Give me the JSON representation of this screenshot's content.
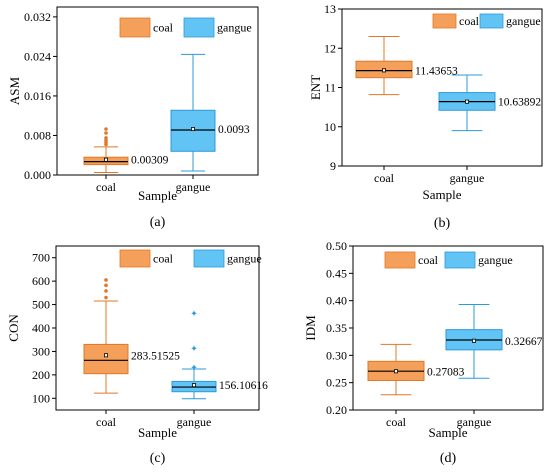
{
  "colors": {
    "coal_fill": "#f4a05a",
    "coal_edge": "#e07828",
    "gangue_fill": "#62c3f5",
    "gangue_edge": "#2c9ad8"
  },
  "legend": {
    "coal": "coal",
    "gangue": "gangue"
  },
  "chart_data": [
    {
      "type": "box",
      "panel_label": "(a)",
      "xlabel": "Sample",
      "ylabel": "ASM",
      "ylim": [
        0,
        0.034
      ],
      "yticks": [
        "0.000",
        "0.008",
        "0.016",
        "0.024",
        "0.032"
      ],
      "categories": [
        "coal",
        "gangue"
      ],
      "series": [
        {
          "name": "coal",
          "whisker_low": 0.0005,
          "q1": 0.0021,
          "median": 0.0027,
          "q3": 0.0036,
          "whisker_high": 0.0057,
          "mean": 0.00309,
          "mean_label": "0.00309",
          "outliers": [
            0.0062,
            0.0066,
            0.007,
            0.0075,
            0.0085,
            0.0093
          ]
        },
        {
          "name": "gangue",
          "whisker_low": 0.0008,
          "q1": 0.0048,
          "median": 0.0091,
          "q3": 0.0131,
          "whisker_high": 0.0244,
          "mean": 0.0093,
          "mean_label": "0.0093",
          "outliers": []
        }
      ]
    },
    {
      "type": "box",
      "panel_label": "(b)",
      "xlabel": "Sample",
      "ylabel": "ENT",
      "ylim": [
        9,
        13
      ],
      "yticks": [
        "9",
        "10",
        "11",
        "12",
        "13"
      ],
      "categories": [
        "coal",
        "gangue"
      ],
      "series": [
        {
          "name": "coal",
          "whisker_low": 10.82,
          "q1": 11.25,
          "median": 11.43,
          "q3": 11.67,
          "whisker_high": 12.3,
          "mean": 11.43653,
          "mean_label": "11.43653",
          "outliers": []
        },
        {
          "name": "gangue",
          "whisker_low": 9.9,
          "q1": 10.42,
          "median": 10.64,
          "q3": 10.87,
          "whisker_high": 11.32,
          "mean": 10.63892,
          "mean_label": "10.63892",
          "outliers": []
        }
      ]
    },
    {
      "type": "box",
      "panel_label": "(c)",
      "xlabel": "Sample",
      "ylabel": "CON",
      "ylim": [
        50,
        750
      ],
      "yticks": [
        "100",
        "200",
        "300",
        "400",
        "500",
        "600",
        "700"
      ],
      "categories": [
        "coal",
        "gangue"
      ],
      "series": [
        {
          "name": "coal",
          "whisker_low": 122,
          "q1": 205,
          "median": 262,
          "q3": 330,
          "whisker_high": 515,
          "mean": 283.51525,
          "mean_label": "283.51525",
          "outliers": [
            530,
            558,
            582,
            605
          ]
        },
        {
          "name": "gangue",
          "whisker_low": 98,
          "q1": 128,
          "median": 148,
          "q3": 172,
          "whisker_high": 225,
          "mean": 156.10616,
          "mean_label": "156.10616",
          "outliers": [
            232,
            312,
            462
          ]
        }
      ]
    },
    {
      "type": "box",
      "panel_label": "(d)",
      "xlabel": "Sample",
      "ylabel": "IDM",
      "ylim": [
        0.2,
        0.5
      ],
      "yticks": [
        "0.20",
        "0.25",
        "0.30",
        "0.35",
        "0.40",
        "0.45",
        "0.50"
      ],
      "categories": [
        "coal",
        "gangue"
      ],
      "series": [
        {
          "name": "coal",
          "whisker_low": 0.228,
          "q1": 0.254,
          "median": 0.271,
          "q3": 0.289,
          "whisker_high": 0.32,
          "mean": 0.27083,
          "mean_label": "0.27083",
          "outliers": []
        },
        {
          "name": "gangue",
          "whisker_low": 0.258,
          "q1": 0.31,
          "median": 0.328,
          "q3": 0.347,
          "whisker_high": 0.393,
          "mean": 0.32667,
          "mean_label": "0.32667",
          "outliers": []
        }
      ]
    }
  ]
}
